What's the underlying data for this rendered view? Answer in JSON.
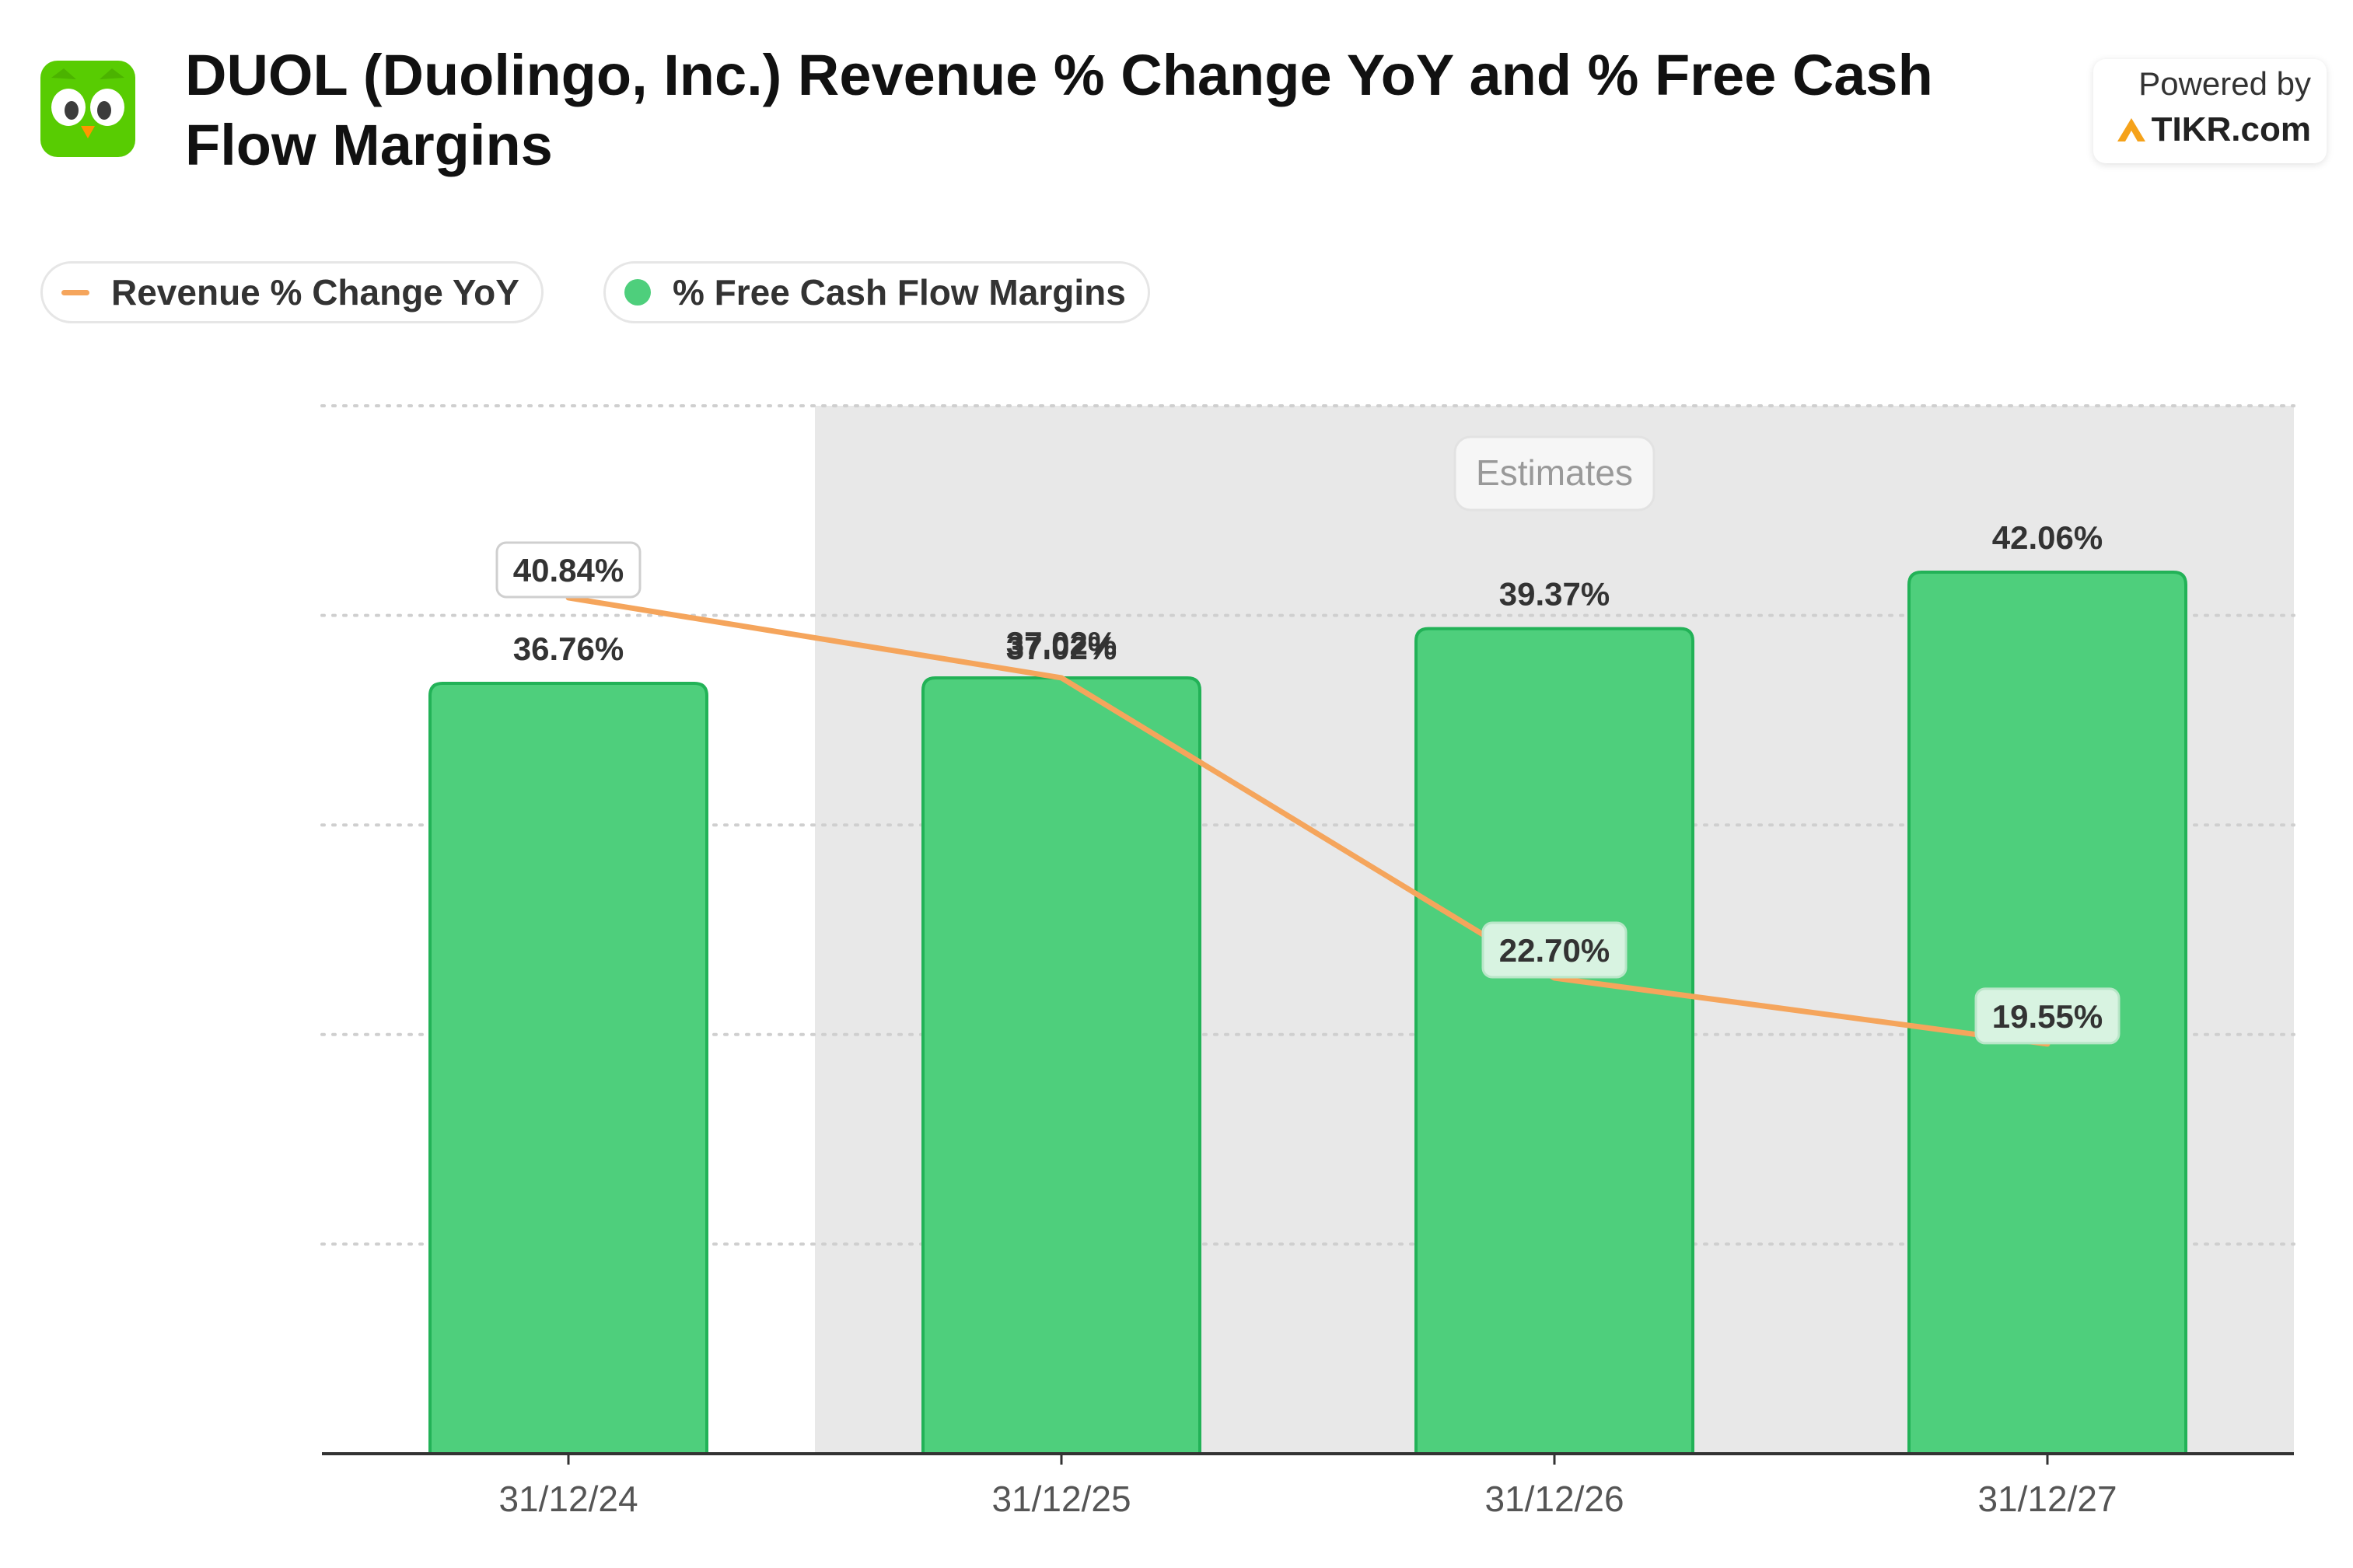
{
  "header": {
    "title": "DUOL (Duolingo, Inc.) Revenue % Change YoY and % Free Cash Flow Margins",
    "powered_by": "Powered by",
    "brand": "TIKR.com"
  },
  "legend": {
    "revenue_label": "Revenue % Change YoY",
    "fcf_label": "% Free Cash Flow Margins"
  },
  "colors": {
    "bar": "#4ecf7c",
    "bar_border": "#22b257",
    "line": "#f5a55c",
    "estimates_bg": "#e8e8e8",
    "owl_green": "#58cc02",
    "brand_accent": "#f5a21a"
  },
  "chart_data": {
    "type": "bar",
    "categories": [
      "31/12/24",
      "31/12/25",
      "31/12/26",
      "31/12/27"
    ],
    "series": [
      {
        "name": "% Free Cash Flow Margins",
        "type": "bar",
        "values": [
          36.76,
          37.02,
          39.37,
          42.06
        ],
        "labels": [
          "36.76%",
          "37.02%",
          "39.37%",
          "42.06%"
        ]
      },
      {
        "name": "Revenue % Change YoY",
        "type": "line",
        "values": [
          40.84,
          37.02,
          22.7,
          19.55
        ],
        "labels": [
          "40.84%",
          "37.02%",
          "22.70%",
          "19.55%"
        ]
      }
    ],
    "estimates_label": "Estimates",
    "estimates_start_index": 1,
    "ylim": [
      0,
      50
    ],
    "grid": true,
    "legend_position": "top-left"
  }
}
